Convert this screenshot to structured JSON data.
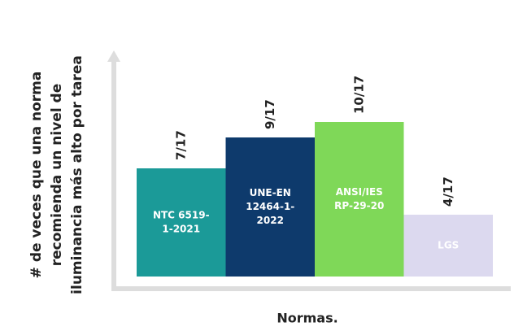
{
  "chart_data": {
    "type": "bar",
    "y_label": [
      "# de veces que una norma",
      "recomienda un nivel de",
      "iluminancia más alto por tarea"
    ],
    "x_label": "Normas.",
    "categories": [
      [
        "NTC 6519-",
        "1-2021"
      ],
      [
        "UNE-EN",
        "12464-1-",
        "2022"
      ],
      [
        "ANSI/IES",
        "RP-29-20"
      ],
      [
        "LGS"
      ]
    ],
    "values": [
      7,
      9,
      10,
      4
    ],
    "value_labels": [
      "7/17",
      "9/17",
      "10/17",
      "4/17"
    ],
    "colors": [
      "#1b9a98",
      "#0e3a6c",
      "#7fd858",
      "#dcd9ef"
    ],
    "ylim": [
      0,
      14
    ]
  }
}
